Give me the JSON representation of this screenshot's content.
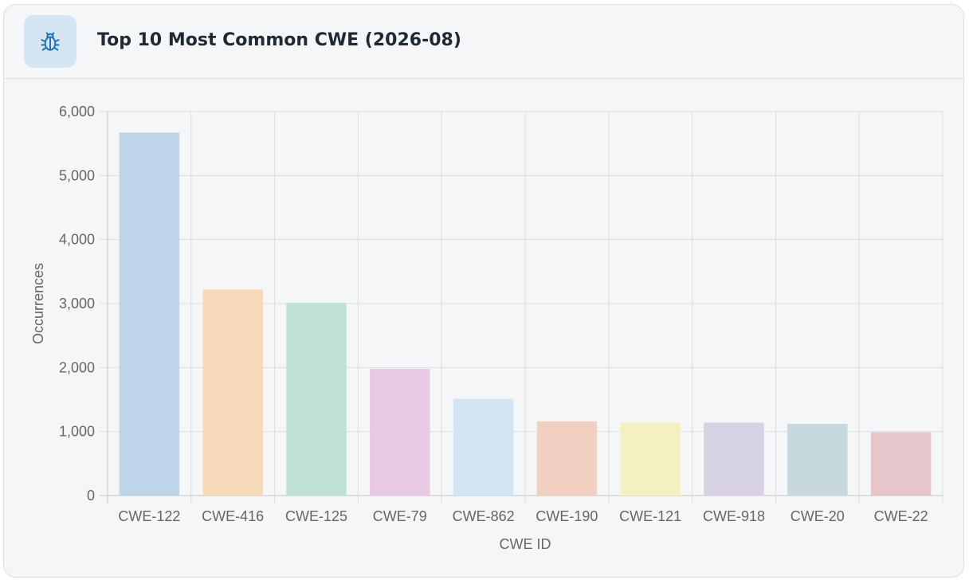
{
  "header": {
    "title": "Top 10 Most Common CWE (2026-08)",
    "icon": "bug-icon",
    "icon_color": "#1f73b7",
    "icon_bg": "#d6e5f3"
  },
  "chart_data": {
    "type": "bar",
    "title": "Top 10 Most Common CWE (2026-08)",
    "xlabel": "CWE ID",
    "ylabel": "Occurrences",
    "ylim": [
      0,
      6000
    ],
    "yticks": [
      "0",
      "1,000",
      "2,000",
      "3,000",
      "4,000",
      "5,000",
      "6,000"
    ],
    "grid": true,
    "legend": "none",
    "categories": [
      "CWE-122",
      "CWE-416",
      "CWE-125",
      "CWE-79",
      "CWE-862",
      "CWE-190",
      "CWE-121",
      "CWE-918",
      "CWE-20",
      "CWE-22"
    ],
    "values": [
      5670,
      3220,
      3010,
      1980,
      1510,
      1160,
      1140,
      1140,
      1120,
      990
    ],
    "colors": [
      "#bed4e9",
      "#f6d9b9",
      "#c2e1d6",
      "#e8cae2",
      "#d3e5f3",
      "#f1cfc1",
      "#f4f0c2",
      "#d7d1e4",
      "#c8d9dd",
      "#e6c6ca"
    ]
  }
}
